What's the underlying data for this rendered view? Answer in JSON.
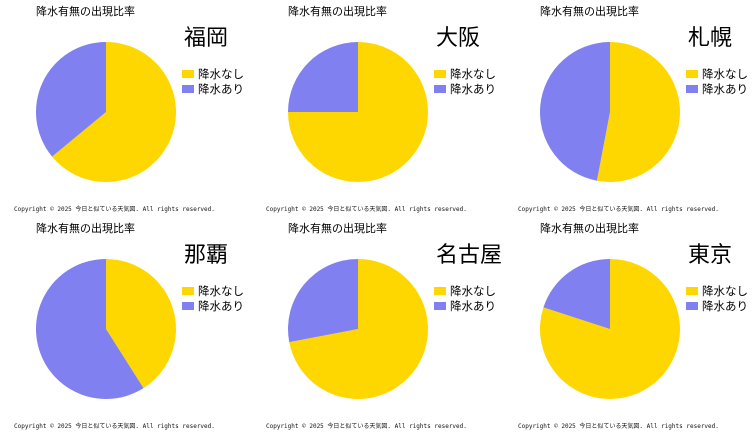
{
  "panel_title": "降水有無の出現比率",
  "legend": {
    "none_label": "降水なし",
    "rain_label": "降水あり"
  },
  "colors": {
    "none": "#FFD700",
    "rain": "#8080F0"
  },
  "copyright": "Copyright ©  2025  今日と似ている天気図. All rights reserved.",
  "chart_data": [
    {
      "type": "pie",
      "city": "福岡",
      "categories": [
        "降水なし",
        "降水あり"
      ],
      "values": [
        64,
        36
      ]
    },
    {
      "type": "pie",
      "city": "大阪",
      "categories": [
        "降水なし",
        "降水あり"
      ],
      "values": [
        75,
        25
      ]
    },
    {
      "type": "pie",
      "city": "札幌",
      "categories": [
        "降水なし",
        "降水あり"
      ],
      "values": [
        53,
        47
      ]
    },
    {
      "type": "pie",
      "city": "那覇",
      "categories": [
        "降水なし",
        "降水あり"
      ],
      "values": [
        41,
        59
      ]
    },
    {
      "type": "pie",
      "city": "名古屋",
      "categories": [
        "降水なし",
        "降水あり"
      ],
      "values": [
        72,
        28
      ]
    },
    {
      "type": "pie",
      "city": "東京",
      "categories": [
        "降水なし",
        "降水あり"
      ],
      "values": [
        80,
        20
      ]
    }
  ]
}
